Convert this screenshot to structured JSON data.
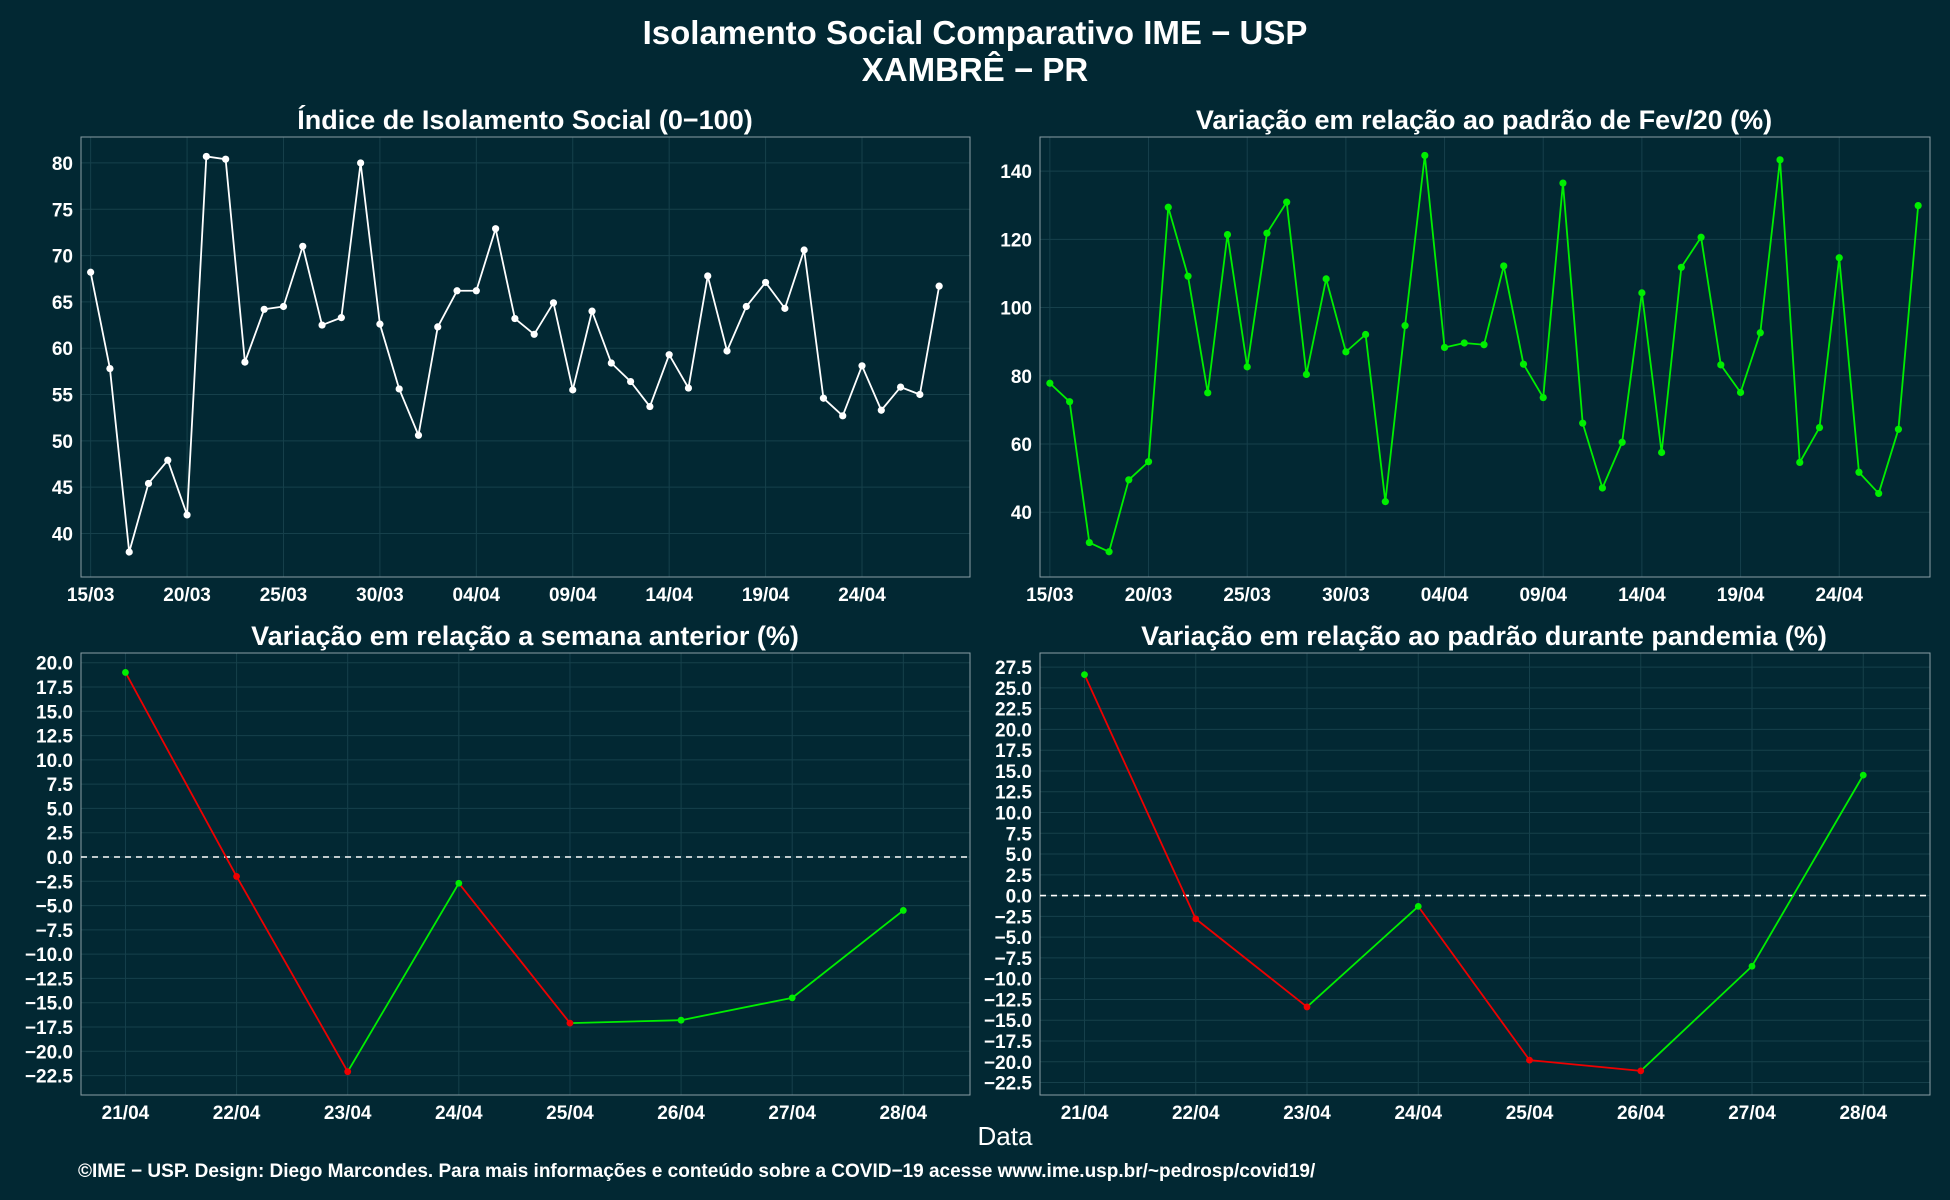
{
  "header": {
    "title": "Isolamento Social Comparativo IME − USP",
    "subtitle": "XAMBRÊ − PR"
  },
  "footer": {
    "xlabel": "Data",
    "credit": "©IME − USP. Design: Diego Marcondes. Para mais informações e conteúdo sobre a COVID−19 acesse www.ime.usp.br/~pedrosp/covid19/"
  },
  "colors": {
    "background": "#022833",
    "white": "#ffffff",
    "green": "#00ee00",
    "red": "#ee0000"
  },
  "chart_data": [
    {
      "type": "line",
      "title": "Índice de Isolamento Social (0−100)",
      "x_start": "15/03",
      "x_ticks": [
        "15/03",
        "20/03",
        "25/03",
        "30/03",
        "04/04",
        "09/04",
        "14/04",
        "19/04",
        "24/04"
      ],
      "y_ticks": [
        40,
        45,
        50,
        55,
        60,
        65,
        70,
        75,
        80
      ],
      "ylim": [
        35.3,
        82.8
      ],
      "xlim": [
        -0.5,
        45.6
      ],
      "grid": true,
      "values": [
        68.2,
        57.8,
        38.0,
        45.4,
        47.9,
        42.0,
        80.7,
        80.4,
        58.5,
        64.2,
        64.5,
        71.0,
        62.5,
        63.3,
        80.0,
        62.6,
        55.6,
        50.6,
        62.3,
        66.2,
        66.2,
        72.9,
        63.2,
        61.5,
        64.9,
        55.5,
        64.0,
        58.4,
        56.4,
        53.7,
        59.3,
        55.7,
        67.8,
        59.7,
        64.5,
        67.1,
        64.3,
        70.6,
        54.6,
        52.7,
        58.1,
        53.3,
        55.8,
        55.0,
        66.7
      ]
    },
    {
      "type": "line",
      "title": "Variação em relação ao padrão de Fev/20 (%)",
      "x_start": "15/03",
      "x_ticks": [
        "15/03",
        "20/03",
        "25/03",
        "30/03",
        "04/04",
        "09/04",
        "14/04",
        "19/04",
        "24/04"
      ],
      "y_ticks": [
        40,
        60,
        80,
        100,
        120,
        140
      ],
      "ylim": [
        21,
        150
      ],
      "xlim": [
        -0.5,
        44.6
      ],
      "grid": true,
      "values": [
        77.8,
        72.4,
        31.1,
        28.4,
        49.5,
        54.8,
        129.4,
        109.2,
        75.0,
        121.4,
        82.6,
        121.8,
        130.9,
        80.4,
        108.4,
        87.0,
        92.1,
        43.1,
        94.7,
        144.6,
        88.3,
        89.6,
        89.1,
        112.2,
        83.4,
        73.6,
        136.5,
        66.1,
        47.1,
        60.5,
        104.3,
        57.5,
        111.8,
        120.6,
        83.2,
        75.1,
        92.6,
        143.3,
        54.6,
        64.8,
        114.6,
        51.7,
        45.5,
        64.3,
        129.9
      ]
    },
    {
      "type": "line",
      "title": "Variação em relação a semana anterior (%)",
      "categories": [
        "21/04",
        "22/04",
        "23/04",
        "24/04",
        "25/04",
        "26/04",
        "27/04",
        "28/04"
      ],
      "values": [
        19.0,
        -2.0,
        -22.1,
        -2.7,
        -17.1,
        -16.8,
        -14.5,
        -5.5
      ],
      "y_ticks": [
        20.0,
        17.5,
        15.0,
        12.5,
        10.0,
        7.5,
        5.0,
        2.5,
        0.0,
        -2.5,
        -5.0,
        -7.5,
        -10.0,
        -12.5,
        -15.0,
        -17.5,
        -20.0,
        -22.5
      ],
      "ylim": [
        -24.5,
        21.0
      ],
      "xlim": [
        -0.4,
        7.6
      ],
      "reference_line": 0,
      "grid": true
    },
    {
      "type": "line",
      "title": "Variação em relação ao padrão durante pandemia (%)",
      "categories": [
        "21/04",
        "22/04",
        "23/04",
        "24/04",
        "25/04",
        "26/04",
        "27/04",
        "28/04"
      ],
      "values": [
        26.6,
        -2.8,
        -13.4,
        -1.3,
        -19.8,
        -21.1,
        -8.5,
        14.5
      ],
      "y_ticks": [
        27.5,
        25.0,
        22.5,
        20.0,
        17.5,
        15.0,
        12.5,
        10.0,
        7.5,
        5.0,
        2.5,
        0.0,
        -2.5,
        -5.0,
        -7.5,
        -10.0,
        -12.5,
        -15.0,
        -17.5,
        -20.0,
        -22.5
      ],
      "ylim": [
        -24.0,
        29.2
      ],
      "xlim": [
        -0.4,
        7.6
      ],
      "reference_line": 0,
      "grid": true
    }
  ]
}
